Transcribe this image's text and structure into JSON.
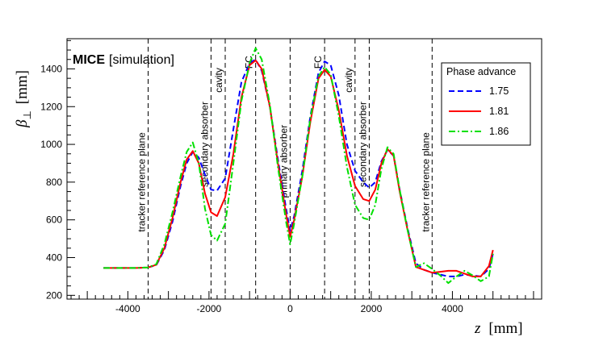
{
  "chart_data": {
    "type": "line",
    "label_bold": "MICE",
    "label_rest": "[simulation]",
    "xlabel_var": "z",
    "xlabel_unit": "[mm]",
    "ylabel_var": "β",
    "ylabel_sub": "⊥",
    "ylabel_unit": "[mm]",
    "xlim": [
      -5500,
      6200
    ],
    "ylim": [
      180,
      1560
    ],
    "x_tick_labels": [
      {
        "value": -4000,
        "label": "-4000"
      },
      {
        "value": -2000,
        "label": "-2000"
      },
      {
        "value": 0,
        "label": "0"
      },
      {
        "value": 2000,
        "label": "2000"
      },
      {
        "value": 4000,
        "label": "4000"
      }
    ],
    "y_tick_labels": [
      {
        "value": 200,
        "label": "200"
      },
      {
        "value": 400,
        "label": "400"
      },
      {
        "value": 600,
        "label": "600"
      },
      {
        "value": 800,
        "label": "800"
      },
      {
        "value": 1000,
        "label": "1000"
      },
      {
        "value": 1200,
        "label": "1200"
      },
      {
        "value": 1400,
        "label": "1400"
      }
    ],
    "markers": [
      {
        "z": -3500,
        "label": "tracker reference plane",
        "label_y": 800
      },
      {
        "z": -1950,
        "label": "secondary absorber",
        "label_y": 1000
      },
      {
        "z": -1600,
        "label": "cavity",
        "label_y": 1340
      },
      {
        "z": -850,
        "label": "FC",
        "label_y": 1435
      },
      {
        "z": 0,
        "label": "primary absorber",
        "label_y": 910
      },
      {
        "z": 850,
        "label": "FC",
        "label_y": 1435
      },
      {
        "z": 1600,
        "label": "cavity",
        "label_y": 1340
      },
      {
        "z": 1950,
        "label": "secondary absorber",
        "label_y": 1000
      },
      {
        "z": 3500,
        "label": "tracker reference plane",
        "label_y": 800
      }
    ],
    "legend_title": "Phase advance",
    "series": [
      {
        "name": "1.75",
        "color": "#0000ff",
        "style": "dashed",
        "x": [
          -4600,
          -3800,
          -3500,
          -3300,
          -3100,
          -2900,
          -2700,
          -2550,
          -2400,
          -2250,
          -2100,
          -1950,
          -1800,
          -1600,
          -1400,
          -1200,
          -1000,
          -850,
          -700,
          -500,
          -300,
          -100,
          0,
          100,
          300,
          500,
          700,
          850,
          1000,
          1200,
          1400,
          1600,
          1800,
          1950,
          2100,
          2250,
          2400,
          2550,
          2700,
          2900,
          3100,
          3300,
          3500,
          3700,
          3900,
          4100,
          4300,
          4500,
          4700,
          4900,
          5000
        ],
        "y": [
          345,
          345,
          348,
          360,
          440,
          590,
          780,
          900,
          960,
          930,
          840,
          760,
          755,
          820,
          1080,
          1330,
          1430,
          1450,
          1390,
          1200,
          920,
          660,
          540,
          620,
          860,
          1150,
          1380,
          1440,
          1420,
          1260,
          1000,
          860,
          800,
          770,
          800,
          910,
          970,
          940,
          760,
          550,
          370,
          335,
          320,
          310,
          300,
          300,
          310,
          305,
          300,
          340,
          420
        ]
      },
      {
        "name": "1.81",
        "color": "#ff0000",
        "style": "solid",
        "x": [
          -4600,
          -3800,
          -3500,
          -3300,
          -3100,
          -2900,
          -2700,
          -2550,
          -2400,
          -2250,
          -2100,
          -1950,
          -1800,
          -1600,
          -1400,
          -1200,
          -1000,
          -850,
          -700,
          -500,
          -300,
          -100,
          0,
          100,
          300,
          500,
          700,
          850,
          1000,
          1200,
          1400,
          1600,
          1800,
          1950,
          2100,
          2250,
          2400,
          2550,
          2700,
          2900,
          3100,
          3300,
          3500,
          3700,
          3900,
          4100,
          4300,
          4500,
          4700,
          4900,
          5000
        ],
        "y": [
          345,
          345,
          348,
          362,
          450,
          610,
          800,
          920,
          965,
          900,
          740,
          640,
          620,
          720,
          950,
          1250,
          1420,
          1445,
          1400,
          1200,
          900,
          630,
          510,
          600,
          830,
          1120,
          1350,
          1395,
          1360,
          1180,
          940,
          780,
          710,
          700,
          760,
          900,
          975,
          940,
          750,
          540,
          350,
          335,
          320,
          325,
          330,
          330,
          315,
          300,
          300,
          355,
          440
        ]
      },
      {
        "name": "1.86",
        "color": "#00e000",
        "style": "dashdot",
        "x": [
          -4600,
          -3800,
          -3500,
          -3300,
          -3100,
          -2900,
          -2700,
          -2550,
          -2400,
          -2250,
          -2100,
          -1950,
          -1800,
          -1600,
          -1400,
          -1200,
          -1000,
          -850,
          -700,
          -500,
          -300,
          -100,
          0,
          100,
          300,
          500,
          700,
          850,
          1000,
          1200,
          1400,
          1600,
          1800,
          1950,
          2100,
          2250,
          2400,
          2550,
          2700,
          2900,
          3100,
          3300,
          3500,
          3700,
          3900,
          4100,
          4300,
          4500,
          4700,
          4900,
          5000
        ],
        "y": [
          345,
          345,
          348,
          365,
          470,
          640,
          830,
          960,
          1010,
          900,
          660,
          520,
          490,
          580,
          900,
          1230,
          1430,
          1510,
          1450,
          1210,
          880,
          590,
          470,
          580,
          830,
          1140,
          1360,
          1410,
          1370,
          1150,
          880,
          680,
          610,
          600,
          680,
          870,
          985,
          950,
          760,
          540,
          350,
          370,
          340,
          305,
          265,
          300,
          330,
          305,
          275,
          300,
          420
        ]
      }
    ]
  }
}
